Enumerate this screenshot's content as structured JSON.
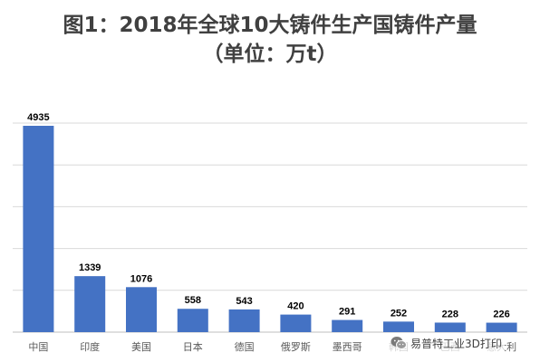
{
  "title": {
    "line1": "图1：2018年全球10大铸件生产国铸件产量",
    "line2": "（单位：万t）"
  },
  "watermark": {
    "icon": "wechat-icon",
    "text": "易普特工业3D打印"
  },
  "colors": {
    "bar": "#4472C4",
    "grid": "#D9D9D9",
    "axis": "#BFBFBF",
    "title": "#404040"
  },
  "chart_data": {
    "type": "bar",
    "title": "图1：2018年全球10大铸件生产国铸件产量（单位：万t）",
    "categories": [
      "中国",
      "印度",
      "美国",
      "日本",
      "德国",
      "俄罗斯",
      "墨西哥",
      "韩国",
      "巴西",
      "意大利"
    ],
    "values": [
      4935,
      1339,
      1076,
      558,
      543,
      420,
      291,
      252,
      228,
      226
    ],
    "xlabel": "",
    "ylabel": "",
    "ylim": [
      0,
      5000
    ],
    "grid": true,
    "legend": "none",
    "data_labels": true,
    "y_tick_labels_shown": false
  }
}
